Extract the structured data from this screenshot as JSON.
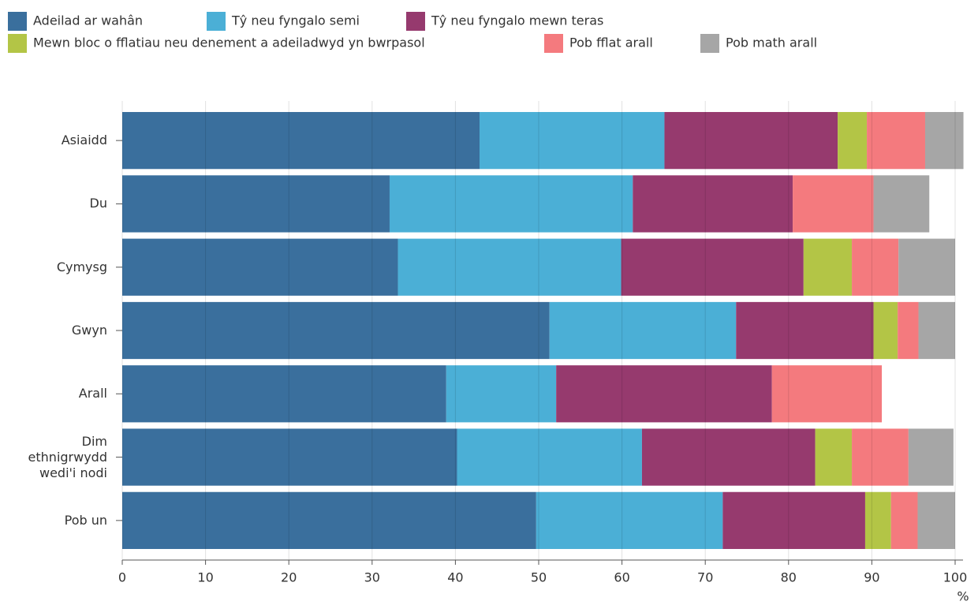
{
  "chart_data": {
    "type": "stacked-barh",
    "categories": [
      "Asiaidd",
      "Du",
      "Cymysg",
      "Gwyn",
      "Arall",
      "Dim ethnigrwydd wedi'i nodi",
      "Pob un"
    ],
    "series": [
      {
        "name": "Adeilad ar wahân",
        "color": "#3a6f9d",
        "values": [
          42.9,
          32.1,
          33.1,
          51.3,
          38.9,
          40.2,
          49.7
        ]
      },
      {
        "name": "Tŷ neu fyngalo semi",
        "color": "#4bafd6",
        "values": [
          22.2,
          29.2,
          26.8,
          22.4,
          13.2,
          22.2,
          22.4
        ]
      },
      {
        "name": "Tŷ neu fyngalo mewn teras",
        "color": "#963a6e",
        "values": [
          20.8,
          19.2,
          21.9,
          16.5,
          25.9,
          20.8,
          17.1
        ]
      },
      {
        "name": "Mewn bloc o fflatiau neu denement a adeiladwyd yn bwrpasol",
        "color": "#b3c546",
        "values": [
          3.5,
          null,
          5.8,
          2.9,
          null,
          4.4,
          3.1
        ]
      },
      {
        "name": "Pob fflat arall",
        "color": "#f47a7e",
        "values": [
          7.0,
          9.7,
          5.6,
          2.5,
          13.2,
          6.8,
          3.2
        ]
      },
      {
        "name": "Pob math arall",
        "color": "#a6a6a6",
        "values": [
          4.6,
          6.7,
          6.8,
          4.4,
          null,
          5.4,
          4.5
        ]
      }
    ],
    "xlim": [
      0,
      100
    ],
    "xticks": [
      0,
      10,
      20,
      30,
      40,
      50,
      60,
      70,
      80,
      90,
      100
    ],
    "x_label": "%",
    "grid": true,
    "legend": "top"
  }
}
